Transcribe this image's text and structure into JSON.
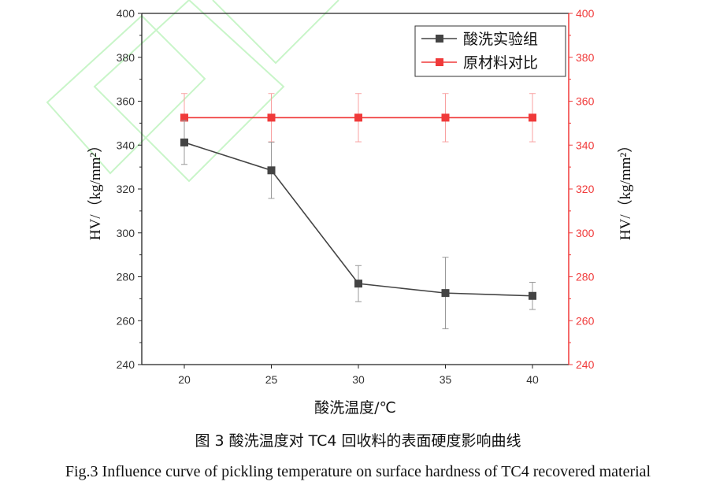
{
  "chart_data": {
    "type": "line",
    "xlabel": "酸洗温度/℃",
    "ylabel_left": "HV/（kg/mm²）",
    "ylabel_right": "HV/（kg/mm²）",
    "x": [
      20,
      25,
      30,
      35,
      40
    ],
    "x_ticks": [
      20,
      25,
      30,
      35,
      40
    ],
    "xlim": [
      17.5,
      42.5
    ],
    "ylim": [
      240,
      400
    ],
    "y_ticks": [
      240,
      260,
      280,
      300,
      320,
      340,
      360,
      380,
      400
    ],
    "grid": false,
    "legend_position": "top-right",
    "series": [
      {
        "name": "酸洗实验组",
        "color": "#444444",
        "marker": "square",
        "values": [
          341.2,
          328.5,
          276.9,
          272.6,
          271.3
        ],
        "errors": [
          10,
          12.8,
          8.2,
          16.3,
          6.2
        ]
      },
      {
        "name": "原材料对比",
        "color": "#f03a3a",
        "marker": "square",
        "values": [
          352.5,
          352.5,
          352.5,
          352.5,
          352.5
        ],
        "errors": [
          11,
          11,
          11,
          11,
          11
        ]
      }
    ],
    "right_axis_color": "#f03a3a"
  },
  "caption_cn": "图 3  酸洗温度对 TC4 回收料的表面硬度影响曲线",
  "caption_en": "Fig.3 Influence curve of pickling temperature on surface hardness of TC4 recovered material"
}
